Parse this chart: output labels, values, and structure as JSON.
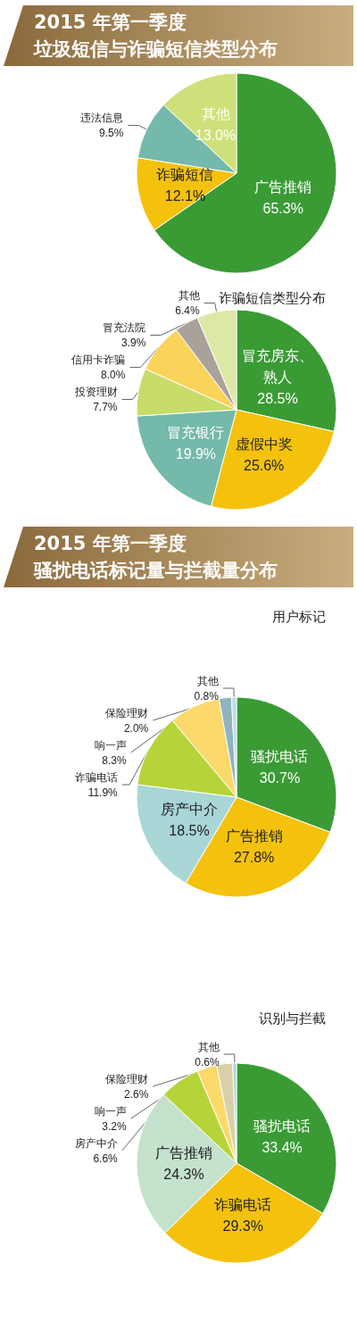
{
  "chart_data": [
    {
      "type": "pie",
      "title": "2015 年第一季度",
      "subtitle": "垃圾短信与诈骗短信类型分布",
      "categories": [
        "广告推销",
        "诈骗短信",
        "违法信息",
        "其他"
      ],
      "values": [
        65.3,
        12.1,
        9.5,
        13.0
      ],
      "value_labels": [
        "65.3%",
        "12.1%",
        "9.5%",
        "13.0%"
      ],
      "colors": [
        "#3a9b35",
        "#f4c20d",
        "#74b9aa",
        "#cfe07a"
      ]
    },
    {
      "type": "pie",
      "title": "诈骗短信类型分布",
      "categories": [
        "冒充房东、熟人",
        "虚假中奖",
        "冒充银行",
        "投资理财",
        "信用卡诈骗",
        "冒充法院",
        "其他"
      ],
      "values": [
        28.5,
        25.6,
        19.9,
        7.7,
        8.0,
        3.9,
        6.4
      ],
      "value_labels": [
        "28.5%",
        "25.6%",
        "19.9%",
        "7.7%",
        "8.0%",
        "3.9%",
        "6.4%"
      ],
      "colors": [
        "#3a9b35",
        "#f4c20d",
        "#74b9aa",
        "#c8dc6a",
        "#fad35a",
        "#a8a29a",
        "#dde8a6"
      ]
    },
    {
      "type": "pie",
      "title": "2015 年第一季度",
      "subtitle": "骚扰电话标记量与拦截量分布",
      "annotations": [
        "用户标记"
      ],
      "categories": [
        "骚扰电话",
        "广告推销",
        "房产中介",
        "诈骗电话",
        "响一声",
        "保险理财",
        "其他"
      ],
      "values": [
        30.7,
        27.8,
        18.5,
        11.9,
        8.3,
        2.0,
        0.8
      ],
      "value_labels": [
        "30.7%",
        "27.8%",
        "18.5%",
        "11.9%",
        "8.3%",
        "2.0%",
        "0.8%"
      ],
      "colors": [
        "#3a9b35",
        "#f4c20d",
        "#a9d6d6",
        "#b6d43a",
        "#fbd96a",
        "#8fb4c0",
        "#b9dfe8"
      ]
    },
    {
      "type": "pie",
      "title": "识别与拦截",
      "categories": [
        "骚扰电话",
        "诈骗电话",
        "广告推销",
        "房产中介",
        "响一声",
        "保险理财",
        "其他"
      ],
      "values": [
        33.4,
        29.3,
        24.3,
        6.6,
        3.2,
        2.6,
        0.6
      ],
      "value_labels": [
        "33.4%",
        "29.3%",
        "24.3%",
        "6.6%",
        "3.2%",
        "2.6%",
        "0.6%"
      ],
      "colors": [
        "#3a9b35",
        "#f4c20d",
        "#c4e2cc",
        "#b6d43a",
        "#fbd96a",
        "#d8d0a8",
        "#a9d6d6"
      ]
    }
  ]
}
